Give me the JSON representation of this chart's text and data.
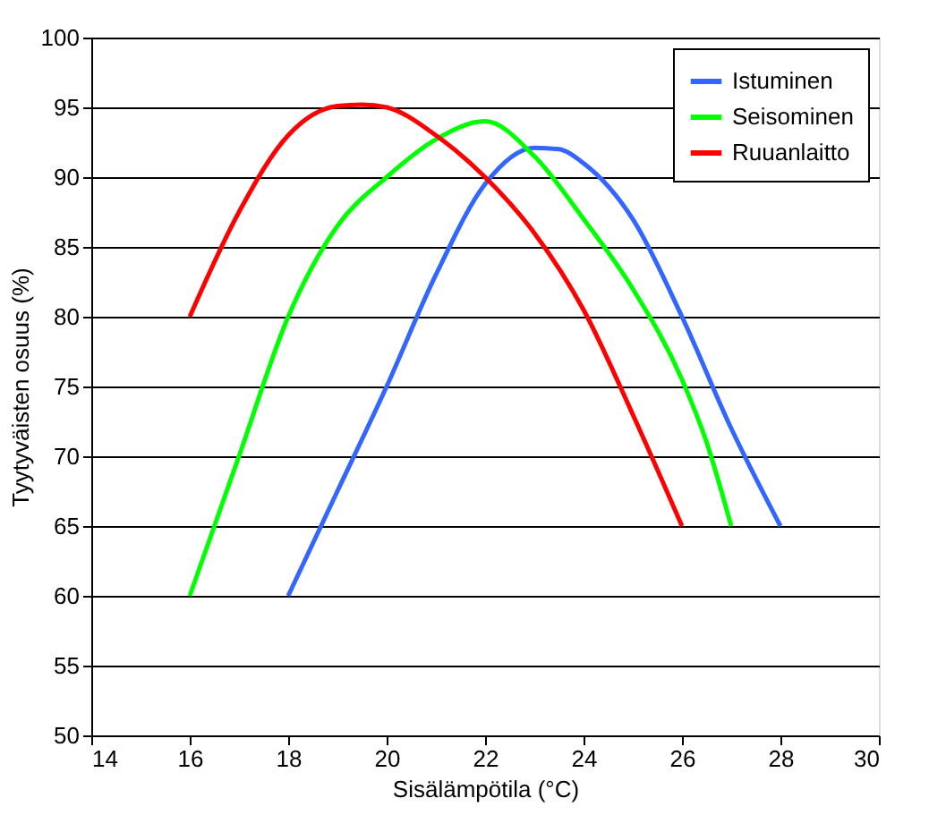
{
  "chart_data": {
    "type": "line",
    "xlabel": "Sisälämpötila (°C)",
    "ylabel": "Tyytyväisten osuus (%)",
    "xlim": [
      14,
      30
    ],
    "xticks": [
      14,
      16,
      18,
      20,
      22,
      24,
      26,
      28,
      30
    ],
    "ylim": [
      50,
      100
    ],
    "yticks": [
      50,
      55,
      60,
      65,
      70,
      75,
      80,
      85,
      90,
      95,
      100
    ],
    "grid": "y",
    "legend": "top right",
    "marker": "none",
    "line_style": "solid",
    "series": [
      {
        "name": "Istuminen",
        "color": "#3366ff",
        "x": [
          18,
          19,
          20,
          21,
          22,
          23,
          23.5,
          24,
          25,
          26,
          27,
          28
        ],
        "values": [
          60,
          67.5,
          75,
          83,
          89.5,
          92.1,
          92,
          91,
          87,
          80,
          72,
          65
        ]
      },
      {
        "name": "Seisominen",
        "color": "#00ff00",
        "x": [
          16,
          17,
          18,
          19,
          20,
          21,
          22,
          23,
          24,
          25,
          26,
          26.5,
          27
        ],
        "values": [
          60,
          70,
          80,
          86.5,
          90,
          92.7,
          94,
          91.5,
          87,
          82,
          75.5,
          71,
          65
        ]
      },
      {
        "name": "Ruuanlaitto",
        "color": "#ff0000",
        "x": [
          16,
          17,
          18,
          19,
          19.5,
          20,
          21,
          22,
          23,
          24,
          25,
          26
        ],
        "values": [
          80,
          87.5,
          93,
          95.1,
          95.2,
          95,
          93,
          90,
          86,
          80.5,
          73,
          65
        ]
      }
    ]
  }
}
